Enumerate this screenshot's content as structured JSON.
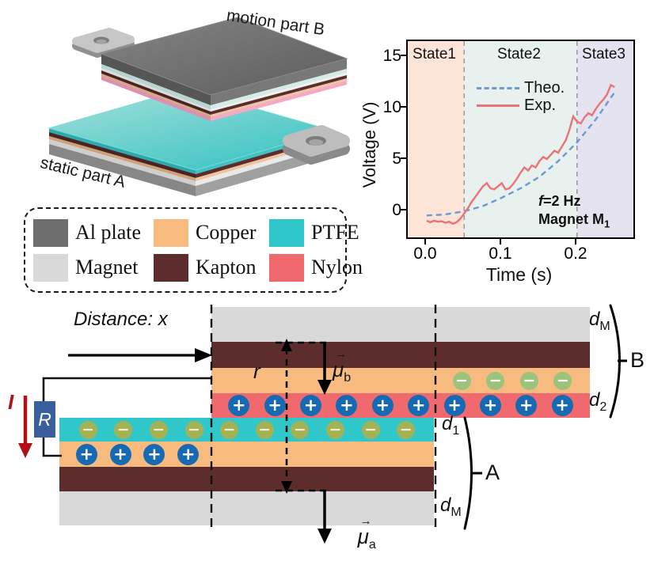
{
  "colors": {
    "al_plate": "#6e6e6e",
    "magnet": "#d9d9d9",
    "copper": "#f7bb80",
    "kapton": "#5d2d2d",
    "ptfe": "#2fc7c9",
    "nylon": "#f0696f",
    "plus_charge": "#1669b3",
    "minus_olive": "#a3b255",
    "minus_green": "#9cc27c",
    "resistor": "#3a5f9f",
    "current_arrow": "#b01117",
    "theo_line": "#6b9bd2",
    "exp_line": "#e87379",
    "state1_bg": "#fce4d9",
    "state2_bg": "#e8f1ee",
    "state3_bg": "#e4e3ef"
  },
  "device3d": {
    "label_motion": "motion part B",
    "label_static": "static part A"
  },
  "legend": {
    "items": [
      {
        "label": "Al plate",
        "color_key": "al_plate"
      },
      {
        "label": "Copper",
        "color_key": "copper"
      },
      {
        "label": "PTFE",
        "color_key": "ptfe"
      },
      {
        "label": "Magnet",
        "color_key": "magnet"
      },
      {
        "label": "Kapton",
        "color_key": "kapton"
      },
      {
        "label": "Nylon",
        "color_key": "nylon"
      }
    ]
  },
  "chart": {
    "ylabel": "Voltage (V)",
    "xlabel": "Time (s)",
    "yticks": [
      "15",
      "10",
      "5",
      "0"
    ],
    "xticks": [
      "0.0",
      "0.1",
      "0.2"
    ],
    "state_labels": [
      "State1",
      "State2",
      "State3"
    ],
    "legend": {
      "theo": "Theo.",
      "exp": "Exp."
    },
    "annotation": {
      "f_italic": "f",
      "f_rest": "=2 Hz",
      "line2_main": "Magnet M",
      "line2_sub": "1"
    }
  },
  "chart_data": {
    "type": "line",
    "title": "",
    "xlabel": "Time (s)",
    "ylabel": "Voltage (V)",
    "xlim": [
      -0.025,
      0.275
    ],
    "ylim": [
      -2.3,
      16.5
    ],
    "xticks": [
      0.0,
      0.1,
      0.2
    ],
    "yticks": [
      0,
      5,
      10,
      15
    ],
    "grid": false,
    "legend_position": "upper-center",
    "state_boundaries_s": [
      0.05,
      0.2
    ],
    "states": [
      {
        "name": "State1",
        "range_s": [
          -0.025,
          0.05
        ],
        "bg": "#fce4d9"
      },
      {
        "name": "State2",
        "range_s": [
          0.05,
          0.2
        ],
        "bg": "#e8f1ee"
      },
      {
        "name": "State3",
        "range_s": [
          0.2,
          0.275
        ],
        "bg": "#e4e3ef"
      }
    ],
    "series": [
      {
        "name": "Theo.",
        "style": "dashed",
        "color": "#6b9bd2",
        "x": [
          0,
          0.025,
          0.05,
          0.075,
          0.1,
          0.125,
          0.15,
          0.175,
          0.2,
          0.225,
          0.25
        ],
        "y": [
          -0.2,
          -0.1,
          0.2,
          0.7,
          1.5,
          2.4,
          3.5,
          5.0,
          6.8,
          9.0,
          11.6
        ]
      },
      {
        "name": "Exp.",
        "style": "solid",
        "color": "#e87379",
        "x_start": 0,
        "x_step": 0.005,
        "y": [
          -0.7,
          -0.85,
          -0.7,
          -0.8,
          -0.75,
          -0.9,
          -0.8,
          -1.0,
          -0.85,
          -0.5,
          0.0,
          0.5,
          1.1,
          1.6,
          2.1,
          2.6,
          2.9,
          2.4,
          2.3,
          2.6,
          2.9,
          2.3,
          2.4,
          2.8,
          3.3,
          3.9,
          4.4,
          4.1,
          4.6,
          4.4,
          5.0,
          5.4,
          5.2,
          5.6,
          6.0,
          5.8,
          6.4,
          7.0,
          8.0,
          9.3,
          8.8,
          8.6,
          9.2,
          9.6,
          9.4,
          10.0,
          10.5,
          10.9,
          11.4,
          12.3,
          12.1
        ]
      }
    ],
    "annotations": [
      "f=2 Hz",
      "Magnet M1"
    ]
  },
  "diagram": {
    "distance_label": "Distance: x",
    "r_label": "r",
    "vector_arrow": "→",
    "mu_b": {
      "mu": "μ",
      "sub": "b"
    },
    "mu_a": {
      "mu": "μ",
      "sub": "a"
    },
    "current_label": "I",
    "resistor_label": "R",
    "d_m": {
      "base": "d",
      "sub": "M"
    },
    "d_2": {
      "base": "d",
      "sub": "2"
    },
    "d_1": {
      "base": "d",
      "sub": "1"
    },
    "part_b_label": "B",
    "part_a_label": "A",
    "charges": {
      "symbols": {
        "plus": "+",
        "minus": "−"
      },
      "groups": [
        {
          "container_id": "charges-nylon-b",
          "symbol": "plus",
          "css": "plus",
          "count": 10
        },
        {
          "container_id": "charges-copper-b",
          "symbol": "minus",
          "css": "minus-green",
          "count": 4
        },
        {
          "container_id": "charges-ptfe-a",
          "symbol": "minus",
          "css": "minus-olive",
          "count": 10
        },
        {
          "container_id": "charges-copper-a",
          "symbol": "plus",
          "css": "plus",
          "count": 4
        }
      ]
    }
  }
}
